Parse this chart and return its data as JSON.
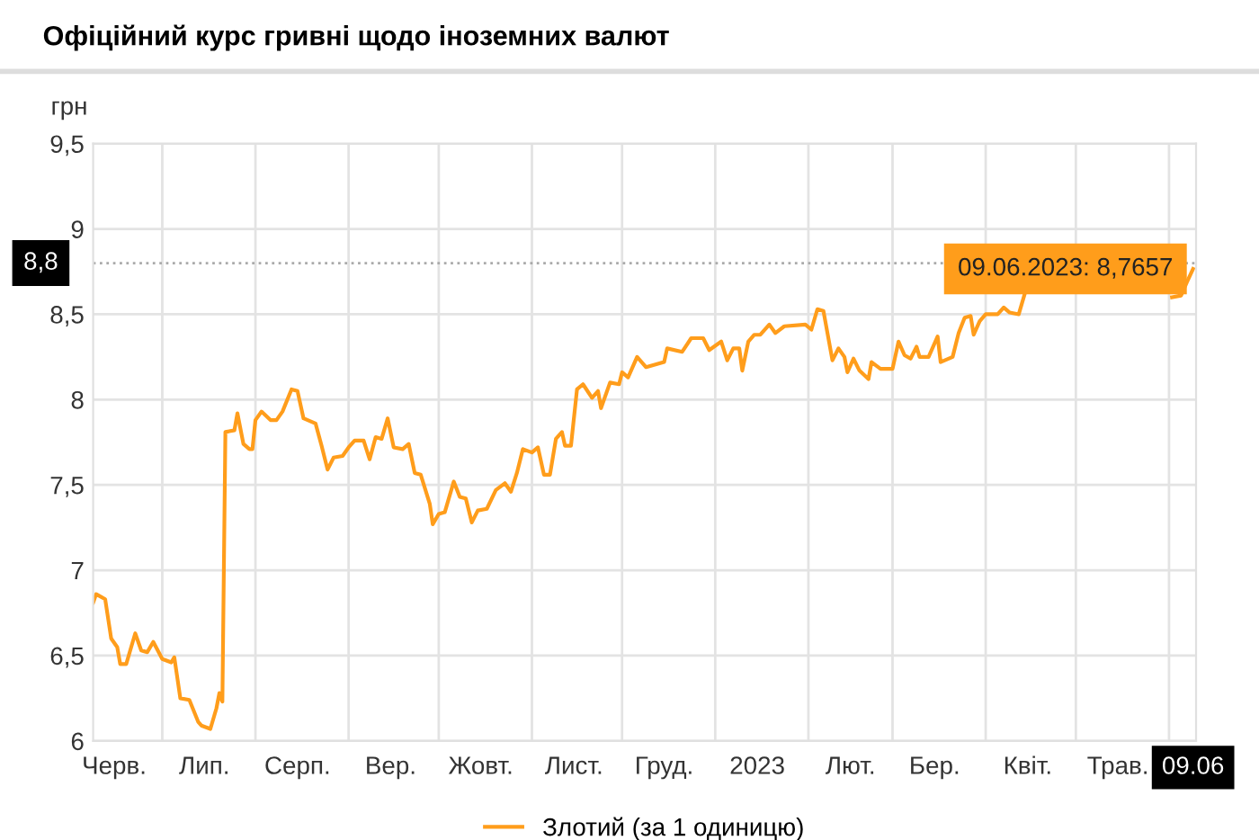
{
  "chart_data": {
    "type": "line",
    "title": "Офіційний курс гривні щодо іноземних валют",
    "ylabel": "грн",
    "x": [
      "2022-06-08",
      "2022-06-09",
      "2022-06-12",
      "2022-06-14",
      "2022-06-16",
      "2022-06-17",
      "2022-06-19",
      "2022-06-22",
      "2022-06-24",
      "2022-06-26",
      "2022-06-28",
      "2022-07-01",
      "2022-07-04",
      "2022-07-05",
      "2022-07-07",
      "2022-07-10",
      "2022-07-13",
      "2022-07-14",
      "2022-07-17",
      "2022-07-19",
      "2022-07-20",
      "2022-07-21",
      "2022-07-22",
      "2022-07-25",
      "2022-07-26",
      "2022-07-28",
      "2022-07-30",
      "2022-07-31",
      "2022-08-01",
      "2022-08-03",
      "2022-08-06",
      "2022-08-08",
      "2022-08-10",
      "2022-08-13",
      "2022-08-15",
      "2022-08-17",
      "2022-08-21",
      "2022-08-23",
      "2022-08-25",
      "2022-08-27",
      "2022-08-30",
      "2022-09-01",
      "2022-09-03",
      "2022-09-06",
      "2022-09-08",
      "2022-09-10",
      "2022-09-12",
      "2022-09-14",
      "2022-09-16",
      "2022-09-19",
      "2022-09-21",
      "2022-09-23",
      "2022-09-25",
      "2022-09-28",
      "2022-09-29",
      "2022-10-01",
      "2022-10-03",
      "2022-10-06",
      "2022-10-08",
      "2022-10-10",
      "2022-10-12",
      "2022-10-14",
      "2022-10-17",
      "2022-10-20",
      "2022-10-23",
      "2022-10-25",
      "2022-10-27",
      "2022-10-29",
      "2022-11-01",
      "2022-11-03",
      "2022-11-05",
      "2022-11-07",
      "2022-11-09",
      "2022-11-11",
      "2022-11-12",
      "2022-11-14",
      "2022-11-16",
      "2022-11-18",
      "2022-11-21",
      "2022-11-23",
      "2022-11-24",
      "2022-11-27",
      "2022-11-30",
      "2022-12-01",
      "2022-12-03",
      "2022-12-06",
      "2022-12-09",
      "2022-12-15",
      "2022-12-16",
      "2022-12-21",
      "2022-12-24",
      "2022-12-28",
      "2022-12-30",
      "2023-01-03",
      "2023-01-05",
      "2023-01-07",
      "2023-01-09",
      "2023-01-10",
      "2023-01-12",
      "2023-01-14",
      "2023-01-16",
      "2023-01-19",
      "2023-01-21",
      "2023-01-24",
      "2023-01-31",
      "2023-02-02",
      "2023-02-04",
      "2023-02-06",
      "2023-02-09",
      "2023-02-11",
      "2023-02-13",
      "2023-02-14",
      "2023-02-16",
      "2023-02-18",
      "2023-02-21",
      "2023-02-22",
      "2023-02-25",
      "2023-03-01",
      "2023-03-03",
      "2023-03-05",
      "2023-03-07",
      "2023-03-09",
      "2023-03-10",
      "2023-03-13",
      "2023-03-16",
      "2023-03-17",
      "2023-03-21",
      "2023-03-23",
      "2023-03-25",
      "2023-03-27",
      "2023-03-28",
      "2023-03-30",
      "2023-04-01",
      "2023-04-05",
      "2023-04-07",
      "2023-04-09",
      "2023-04-12",
      "2023-04-14",
      "2023-04-15",
      "2023-05-10",
      "2023-06-02",
      "2023-06-05",
      "2023-06-07",
      "2023-06-09"
    ],
    "series": [
      {
        "name": "Злотий (за 1 одиницю)",
        "color": "#ff9d1b",
        "values": [
          6.81,
          6.86,
          6.83,
          6.6,
          6.55,
          6.45,
          6.45,
          6.63,
          6.53,
          6.52,
          6.58,
          6.48,
          6.46,
          6.49,
          6.25,
          6.24,
          6.11,
          6.09,
          6.07,
          6.19,
          6.28,
          6.23,
          7.81,
          7.82,
          7.92,
          7.74,
          7.71,
          7.71,
          7.88,
          7.93,
          7.88,
          7.88,
          7.93,
          8.06,
          8.05,
          7.89,
          7.86,
          7.73,
          7.59,
          7.66,
          7.67,
          7.72,
          7.76,
          7.76,
          7.65,
          7.78,
          7.77,
          7.89,
          7.72,
          7.71,
          7.74,
          7.57,
          7.56,
          7.39,
          7.27,
          7.33,
          7.34,
          7.52,
          7.43,
          7.42,
          7.28,
          7.35,
          7.36,
          7.47,
          7.51,
          7.46,
          7.57,
          7.71,
          7.69,
          7.72,
          7.56,
          7.56,
          7.77,
          7.81,
          7.73,
          7.73,
          8.06,
          8.09,
          8.01,
          8.05,
          7.95,
          8.1,
          8.09,
          8.16,
          8.13,
          8.25,
          8.19,
          8.22,
          8.3,
          8.28,
          8.36,
          8.36,
          8.29,
          8.34,
          8.23,
          8.3,
          8.3,
          8.17,
          8.34,
          8.38,
          8.38,
          8.44,
          8.39,
          8.43,
          8.44,
          8.41,
          8.53,
          8.52,
          8.23,
          8.3,
          8.25,
          8.16,
          8.24,
          8.17,
          8.12,
          8.22,
          8.18,
          8.18,
          8.34,
          8.26,
          8.24,
          8.31,
          8.25,
          8.25,
          8.37,
          8.22,
          8.25,
          8.39,
          8.48,
          8.49,
          8.38,
          8.46,
          8.5,
          8.5,
          8.54,
          8.51,
          8.5,
          8.62,
          null,
          null,
          8.6,
          8.61,
          8.69,
          8.7657
        ]
      }
    ],
    "xlim": [
      "2022-06-08",
      "2023-06-10"
    ],
    "xticks": [
      {
        "value": "2022-06-15",
        "label": "Черв."
      },
      {
        "value": "2022-07-01",
        "label": null
      },
      {
        "value": "2022-07-15",
        "label": "Лип."
      },
      {
        "value": "2022-08-01",
        "label": null
      },
      {
        "value": "2022-08-15",
        "label": "Серп."
      },
      {
        "value": "2022-09-01",
        "label": null
      },
      {
        "value": "2022-09-15",
        "label": "Вер."
      },
      {
        "value": "2022-10-01",
        "label": null
      },
      {
        "value": "2022-10-15",
        "label": "Жовт."
      },
      {
        "value": "2022-11-01",
        "label": null
      },
      {
        "value": "2022-11-15",
        "label": "Лист."
      },
      {
        "value": "2022-12-01",
        "label": null
      },
      {
        "value": "2022-12-15",
        "label": "Груд."
      },
      {
        "value": "2023-01-01",
        "label": null
      },
      {
        "value": "2023-01-15",
        "label": "2023"
      },
      {
        "value": "2023-02-01",
        "label": null
      },
      {
        "value": "2023-02-15",
        "label": "Лют."
      },
      {
        "value": "2023-03-01",
        "label": null
      },
      {
        "value": "2023-03-15",
        "label": "Бер."
      },
      {
        "value": "2023-04-01",
        "label": null
      },
      {
        "value": "2023-04-15",
        "label": "Квіт."
      },
      {
        "value": "2023-05-01",
        "label": null
      },
      {
        "value": "2023-05-15",
        "label": "Трав."
      },
      {
        "value": "2023-06-01",
        "label": null
      },
      {
        "value": "2023-06-09",
        "label": "09.06"
      }
    ],
    "ylim": [
      6,
      9.5
    ],
    "yticks": [
      6,
      {
        "value": 6.5,
        "label": "6,5"
      },
      7,
      {
        "value": 7.5,
        "label": "7,5"
      },
      8,
      {
        "value": 8.5,
        "label": "8,5"
      },
      9,
      {
        "value": 9.5,
        "label": "9,5"
      }
    ],
    "ref_lines": [
      {
        "axis": "y",
        "value": 8.8,
        "label": "8,8",
        "color": "#aaaaaa",
        "line_style": "dotted"
      }
    ],
    "annotations": [
      {
        "text": "09.06.2023: 8,7657",
        "x": "2023-06-09",
        "y": 8.7657
      }
    ],
    "grid": true,
    "legend": "bottom",
    "marker": "none",
    "line_style": "solid"
  }
}
